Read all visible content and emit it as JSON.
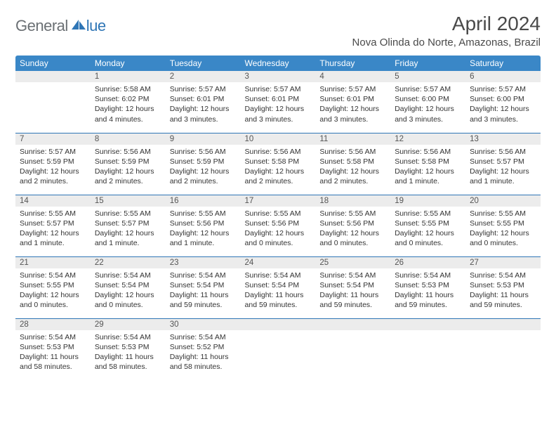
{
  "logo": {
    "part1": "General",
    "part2": "lue"
  },
  "header": {
    "title": "April 2024",
    "location": "Nova Olinda do Norte, Amazonas, Brazil"
  },
  "colors": {
    "header_bg": "#3a87c7",
    "header_text": "#ffffff",
    "week_border": "#2f76b6",
    "daynum_bg": "#ececec",
    "logo_gray": "#6b7074",
    "logo_blue": "#2f76b6"
  },
  "weekdays": [
    "Sunday",
    "Monday",
    "Tuesday",
    "Wednesday",
    "Thursday",
    "Friday",
    "Saturday"
  ],
  "weeks": [
    [
      {
        "n": "",
        "sunrise": "",
        "sunset": "",
        "day": ""
      },
      {
        "n": "1",
        "sunrise": "Sunrise: 5:58 AM",
        "sunset": "Sunset: 6:02 PM",
        "day": "Daylight: 12 hours and 4 minutes."
      },
      {
        "n": "2",
        "sunrise": "Sunrise: 5:57 AM",
        "sunset": "Sunset: 6:01 PM",
        "day": "Daylight: 12 hours and 3 minutes."
      },
      {
        "n": "3",
        "sunrise": "Sunrise: 5:57 AM",
        "sunset": "Sunset: 6:01 PM",
        "day": "Daylight: 12 hours and 3 minutes."
      },
      {
        "n": "4",
        "sunrise": "Sunrise: 5:57 AM",
        "sunset": "Sunset: 6:01 PM",
        "day": "Daylight: 12 hours and 3 minutes."
      },
      {
        "n": "5",
        "sunrise": "Sunrise: 5:57 AM",
        "sunset": "Sunset: 6:00 PM",
        "day": "Daylight: 12 hours and 3 minutes."
      },
      {
        "n": "6",
        "sunrise": "Sunrise: 5:57 AM",
        "sunset": "Sunset: 6:00 PM",
        "day": "Daylight: 12 hours and 3 minutes."
      }
    ],
    [
      {
        "n": "7",
        "sunrise": "Sunrise: 5:57 AM",
        "sunset": "Sunset: 5:59 PM",
        "day": "Daylight: 12 hours and 2 minutes."
      },
      {
        "n": "8",
        "sunrise": "Sunrise: 5:56 AM",
        "sunset": "Sunset: 5:59 PM",
        "day": "Daylight: 12 hours and 2 minutes."
      },
      {
        "n": "9",
        "sunrise": "Sunrise: 5:56 AM",
        "sunset": "Sunset: 5:59 PM",
        "day": "Daylight: 12 hours and 2 minutes."
      },
      {
        "n": "10",
        "sunrise": "Sunrise: 5:56 AM",
        "sunset": "Sunset: 5:58 PM",
        "day": "Daylight: 12 hours and 2 minutes."
      },
      {
        "n": "11",
        "sunrise": "Sunrise: 5:56 AM",
        "sunset": "Sunset: 5:58 PM",
        "day": "Daylight: 12 hours and 2 minutes."
      },
      {
        "n": "12",
        "sunrise": "Sunrise: 5:56 AM",
        "sunset": "Sunset: 5:58 PM",
        "day": "Daylight: 12 hours and 1 minute."
      },
      {
        "n": "13",
        "sunrise": "Sunrise: 5:56 AM",
        "sunset": "Sunset: 5:57 PM",
        "day": "Daylight: 12 hours and 1 minute."
      }
    ],
    [
      {
        "n": "14",
        "sunrise": "Sunrise: 5:55 AM",
        "sunset": "Sunset: 5:57 PM",
        "day": "Daylight: 12 hours and 1 minute."
      },
      {
        "n": "15",
        "sunrise": "Sunrise: 5:55 AM",
        "sunset": "Sunset: 5:57 PM",
        "day": "Daylight: 12 hours and 1 minute."
      },
      {
        "n": "16",
        "sunrise": "Sunrise: 5:55 AM",
        "sunset": "Sunset: 5:56 PM",
        "day": "Daylight: 12 hours and 1 minute."
      },
      {
        "n": "17",
        "sunrise": "Sunrise: 5:55 AM",
        "sunset": "Sunset: 5:56 PM",
        "day": "Daylight: 12 hours and 0 minutes."
      },
      {
        "n": "18",
        "sunrise": "Sunrise: 5:55 AM",
        "sunset": "Sunset: 5:56 PM",
        "day": "Daylight: 12 hours and 0 minutes."
      },
      {
        "n": "19",
        "sunrise": "Sunrise: 5:55 AM",
        "sunset": "Sunset: 5:55 PM",
        "day": "Daylight: 12 hours and 0 minutes."
      },
      {
        "n": "20",
        "sunrise": "Sunrise: 5:55 AM",
        "sunset": "Sunset: 5:55 PM",
        "day": "Daylight: 12 hours and 0 minutes."
      }
    ],
    [
      {
        "n": "21",
        "sunrise": "Sunrise: 5:54 AM",
        "sunset": "Sunset: 5:55 PM",
        "day": "Daylight: 12 hours and 0 minutes."
      },
      {
        "n": "22",
        "sunrise": "Sunrise: 5:54 AM",
        "sunset": "Sunset: 5:54 PM",
        "day": "Daylight: 12 hours and 0 minutes."
      },
      {
        "n": "23",
        "sunrise": "Sunrise: 5:54 AM",
        "sunset": "Sunset: 5:54 PM",
        "day": "Daylight: 11 hours and 59 minutes."
      },
      {
        "n": "24",
        "sunrise": "Sunrise: 5:54 AM",
        "sunset": "Sunset: 5:54 PM",
        "day": "Daylight: 11 hours and 59 minutes."
      },
      {
        "n": "25",
        "sunrise": "Sunrise: 5:54 AM",
        "sunset": "Sunset: 5:54 PM",
        "day": "Daylight: 11 hours and 59 minutes."
      },
      {
        "n": "26",
        "sunrise": "Sunrise: 5:54 AM",
        "sunset": "Sunset: 5:53 PM",
        "day": "Daylight: 11 hours and 59 minutes."
      },
      {
        "n": "27",
        "sunrise": "Sunrise: 5:54 AM",
        "sunset": "Sunset: 5:53 PM",
        "day": "Daylight: 11 hours and 59 minutes."
      }
    ],
    [
      {
        "n": "28",
        "sunrise": "Sunrise: 5:54 AM",
        "sunset": "Sunset: 5:53 PM",
        "day": "Daylight: 11 hours and 58 minutes."
      },
      {
        "n": "29",
        "sunrise": "Sunrise: 5:54 AM",
        "sunset": "Sunset: 5:53 PM",
        "day": "Daylight: 11 hours and 58 minutes."
      },
      {
        "n": "30",
        "sunrise": "Sunrise: 5:54 AM",
        "sunset": "Sunset: 5:52 PM",
        "day": "Daylight: 11 hours and 58 minutes."
      },
      {
        "n": "",
        "sunrise": "",
        "sunset": "",
        "day": ""
      },
      {
        "n": "",
        "sunrise": "",
        "sunset": "",
        "day": ""
      },
      {
        "n": "",
        "sunrise": "",
        "sunset": "",
        "day": ""
      },
      {
        "n": "",
        "sunrise": "",
        "sunset": "",
        "day": ""
      }
    ]
  ]
}
